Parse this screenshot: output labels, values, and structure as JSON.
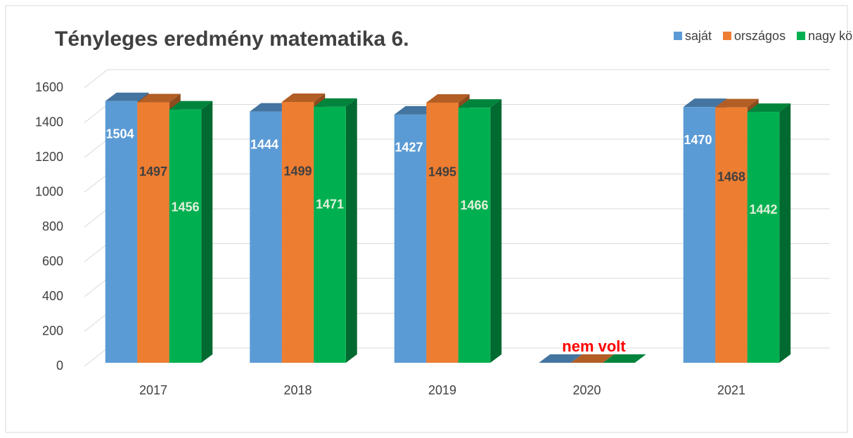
{
  "chart_data": {
    "type": "bar3d",
    "title": "Tényleges eredmény matematika 6.",
    "categories": [
      "2017",
      "2018",
      "2019",
      "2020",
      "2021"
    ],
    "series": [
      {
        "name": "saját",
        "color": "#5b9bd5",
        "values": [
          1504,
          1444,
          1427,
          0,
          1470
        ]
      },
      {
        "name": "országos",
        "color": "#ed7d31",
        "values": [
          1497,
          1499,
          1495,
          0,
          1468
        ]
      },
      {
        "name": "nagy községi",
        "color": "#00b050",
        "values": [
          1456,
          1471,
          1466,
          0,
          1442
        ]
      }
    ],
    "ylim": [
      0,
      1600
    ],
    "yticks": [
      0,
      200,
      400,
      600,
      800,
      1000,
      1200,
      1400,
      1600
    ],
    "grid": true,
    "legend": "top-right",
    "annotations": [
      {
        "text": "nem volt",
        "category": 3
      }
    ]
  }
}
